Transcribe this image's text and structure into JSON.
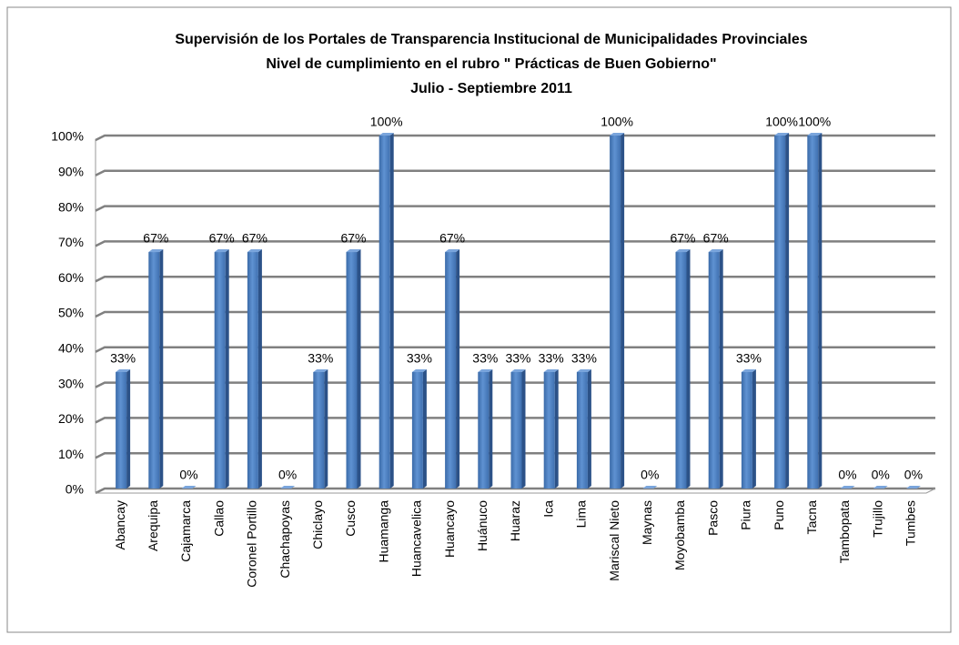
{
  "chart_data": {
    "type": "bar",
    "title": [
      "Supervisión de los Portales de Transparencia Institucional de Municipalidades Provinciales",
      "Nivel de cumplimiento en el rubro \" Prácticas de Buen Gobierno\"",
      "Julio - Septiembre 2011"
    ],
    "categories": [
      "Abancay",
      "Arequipa",
      "Cajamarca",
      "Callao",
      "Coronel Portillo",
      "Chachapoyas",
      "Chiclayo",
      "Cusco",
      "Huamanga",
      "Huancavelica",
      "Huancayo",
      "Huánuco",
      "Huaraz",
      "Ica",
      "Lima",
      "Mariscal Nieto",
      "Maynas",
      "Moyobamba",
      "Pasco",
      "Piura",
      "Puno",
      "Tacna",
      "Tambopata",
      "Trujillo",
      "Tumbes"
    ],
    "values": [
      33,
      67,
      0,
      67,
      67,
      0,
      33,
      67,
      100,
      33,
      67,
      33,
      33,
      33,
      33,
      100,
      0,
      67,
      67,
      33,
      100,
      100,
      0,
      0,
      0
    ],
    "value_labels": [
      "33%",
      "67%",
      "0%",
      "67%",
      "67%",
      "0%",
      "33%",
      "67%",
      "100%",
      "33%",
      "67%",
      "33%",
      "33%",
      "33%",
      "33%",
      "100%",
      "0%",
      "67%",
      "67%",
      "33%",
      "100%",
      "100%",
      "0%",
      "0%",
      "0%"
    ],
    "color": "#4f81bd",
    "ylim": [
      0,
      100
    ],
    "yticks": [
      {
        "value": 0,
        "label": "0%"
      },
      {
        "value": 10,
        "label": "10%"
      },
      {
        "value": 20,
        "label": "20%"
      },
      {
        "value": 30,
        "label": "30%"
      },
      {
        "value": 40,
        "label": "40%"
      },
      {
        "value": 50,
        "label": "50%"
      },
      {
        "value": 60,
        "label": "60%"
      },
      {
        "value": 70,
        "label": "70%"
      },
      {
        "value": 80,
        "label": "80%"
      },
      {
        "value": 90,
        "label": "90%"
      },
      {
        "value": 100,
        "label": "100%"
      }
    ],
    "grid": true
  }
}
